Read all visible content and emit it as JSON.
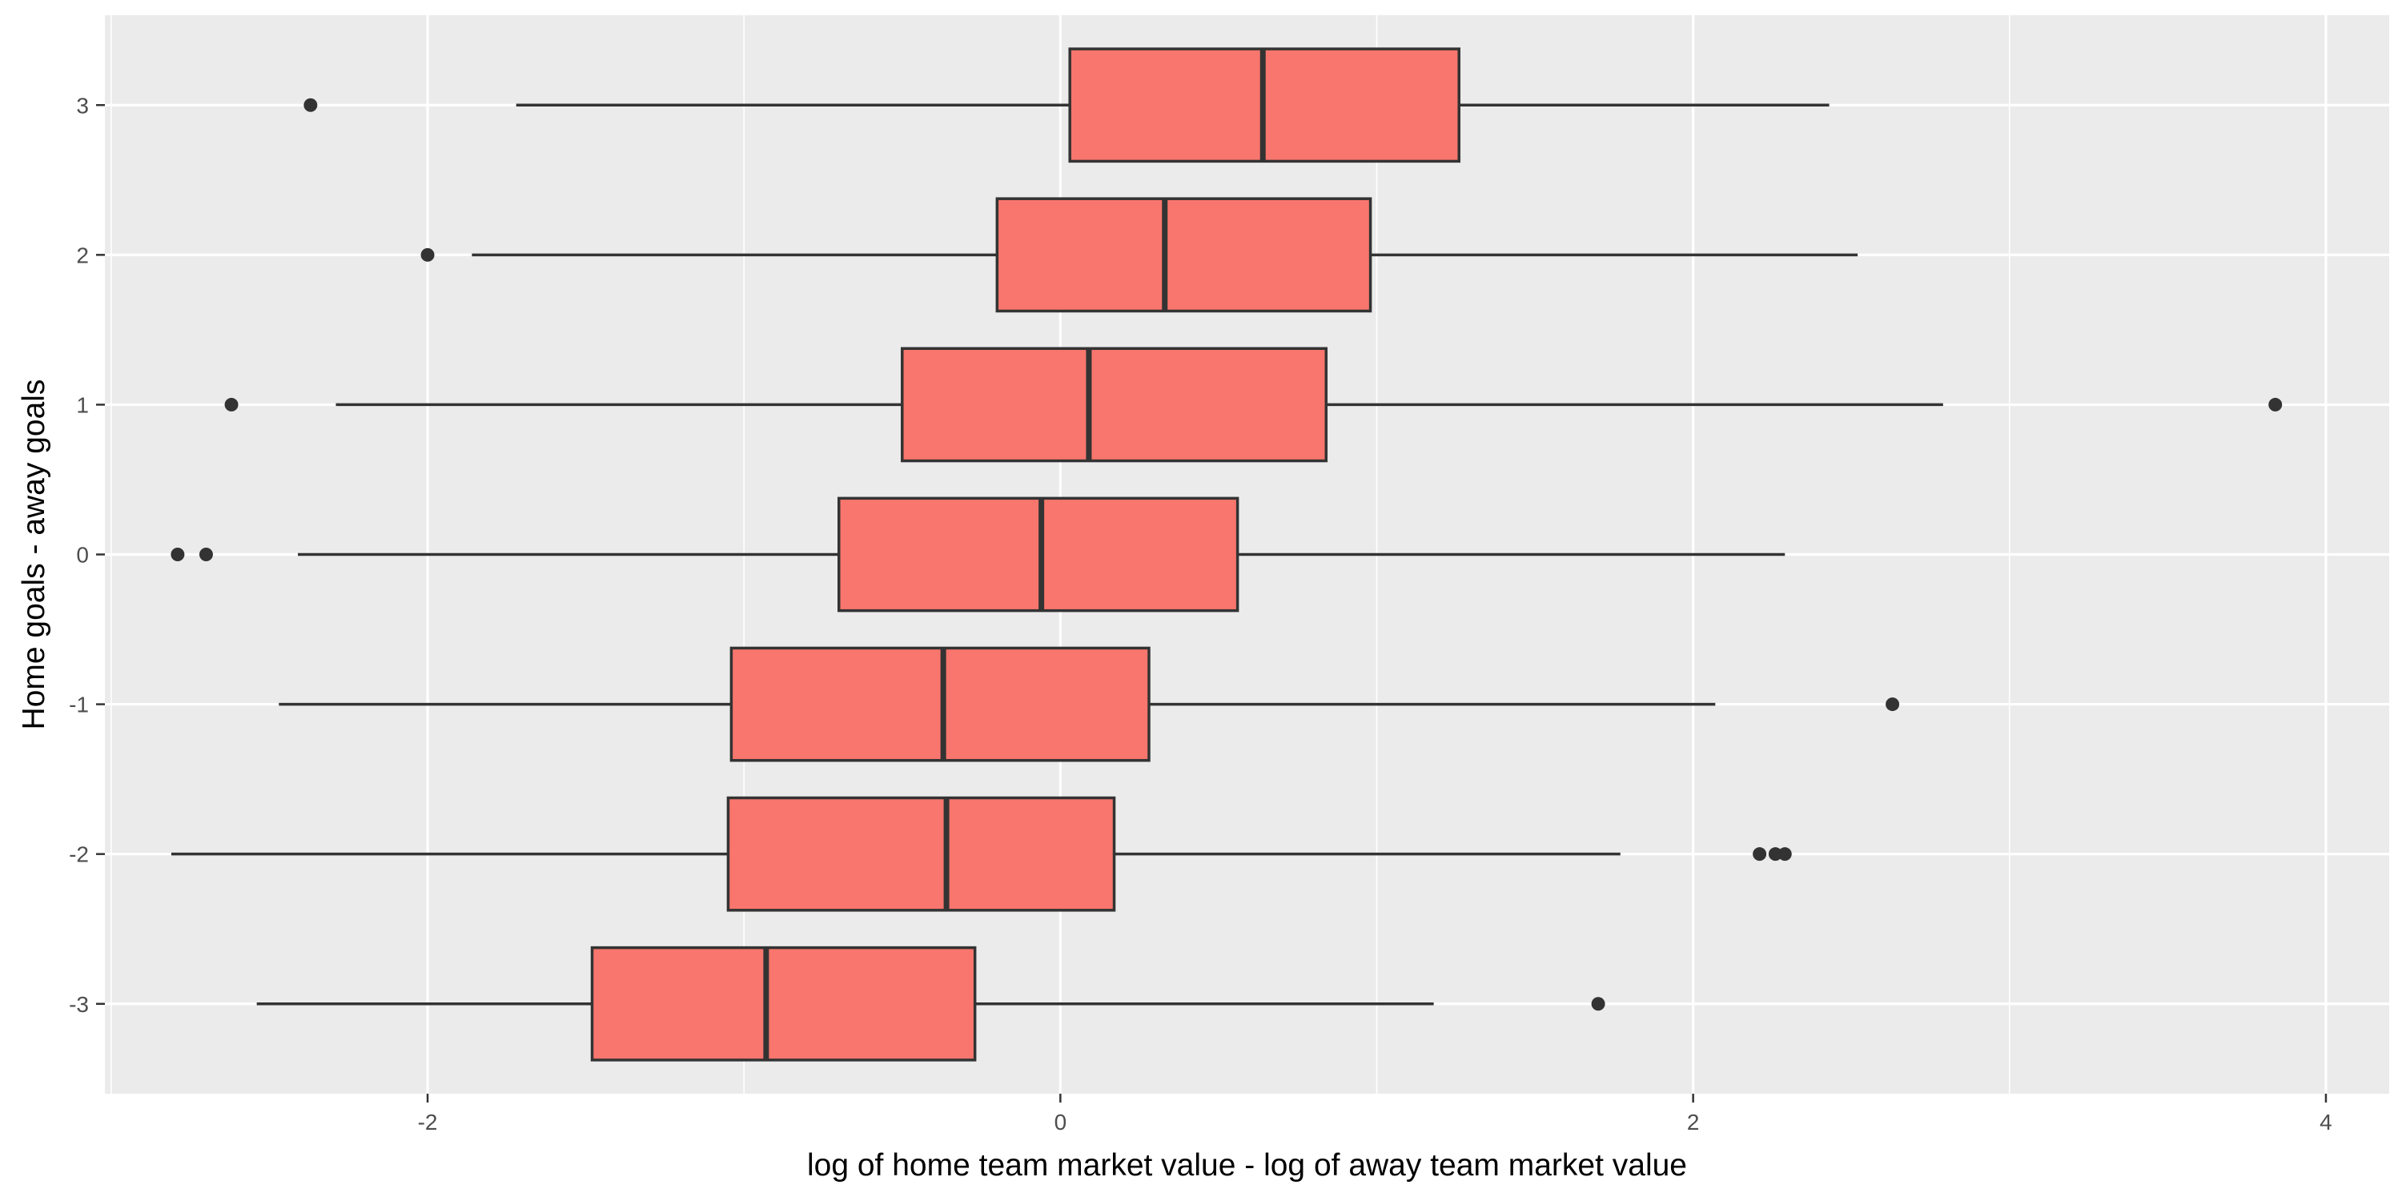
{
  "chart_data": {
    "type": "boxplot",
    "orientation": "horizontal",
    "title": "",
    "xlabel": "log of home team market value - log of away team market value",
    "ylabel": "Home goals - away goals",
    "xlim": [
      -3.02,
      4.2
    ],
    "x_ticks": [
      -2,
      0,
      2,
      4
    ],
    "x_tick_labels": [
      "-2",
      "0",
      "2",
      "4"
    ],
    "categories": [
      "-3",
      "-2",
      "-1",
      "0",
      "1",
      "2",
      "3"
    ],
    "grid": true,
    "legend": "none",
    "fill_color": "#F8766D",
    "series": [
      {
        "category": "-3",
        "whisker_low": -2.54,
        "q1": -1.48,
        "median": -0.93,
        "q3": -0.27,
        "whisker_high": 1.18,
        "outliers": [
          1.7
        ]
      },
      {
        "category": "-2",
        "whisker_low": -2.81,
        "q1": -1.05,
        "median": -0.36,
        "q3": 0.17,
        "whisker_high": 1.77,
        "outliers": [
          2.21,
          2.26,
          2.29
        ]
      },
      {
        "category": "-1",
        "whisker_low": -2.47,
        "q1": -1.04,
        "median": -0.37,
        "q3": 0.28,
        "whisker_high": 2.07,
        "outliers": [
          2.63
        ]
      },
      {
        "category": "0",
        "whisker_low": -2.41,
        "q1": -0.7,
        "median": -0.06,
        "q3": 0.56,
        "whisker_high": 2.29,
        "outliers": [
          -2.79,
          -2.7
        ]
      },
      {
        "category": "1",
        "whisker_low": -2.29,
        "q1": -0.5,
        "median": 0.09,
        "q3": 0.84,
        "whisker_high": 2.79,
        "outliers": [
          -2.62,
          3.84
        ]
      },
      {
        "category": "2",
        "whisker_low": -1.86,
        "q1": -0.2,
        "median": 0.33,
        "q3": 0.98,
        "whisker_high": 2.52,
        "outliers": [
          -2.0
        ]
      },
      {
        "category": "3",
        "whisker_low": -1.72,
        "q1": 0.03,
        "median": 0.64,
        "q3": 1.26,
        "whisker_high": 2.43,
        "outliers": [
          -2.37
        ]
      }
    ]
  }
}
